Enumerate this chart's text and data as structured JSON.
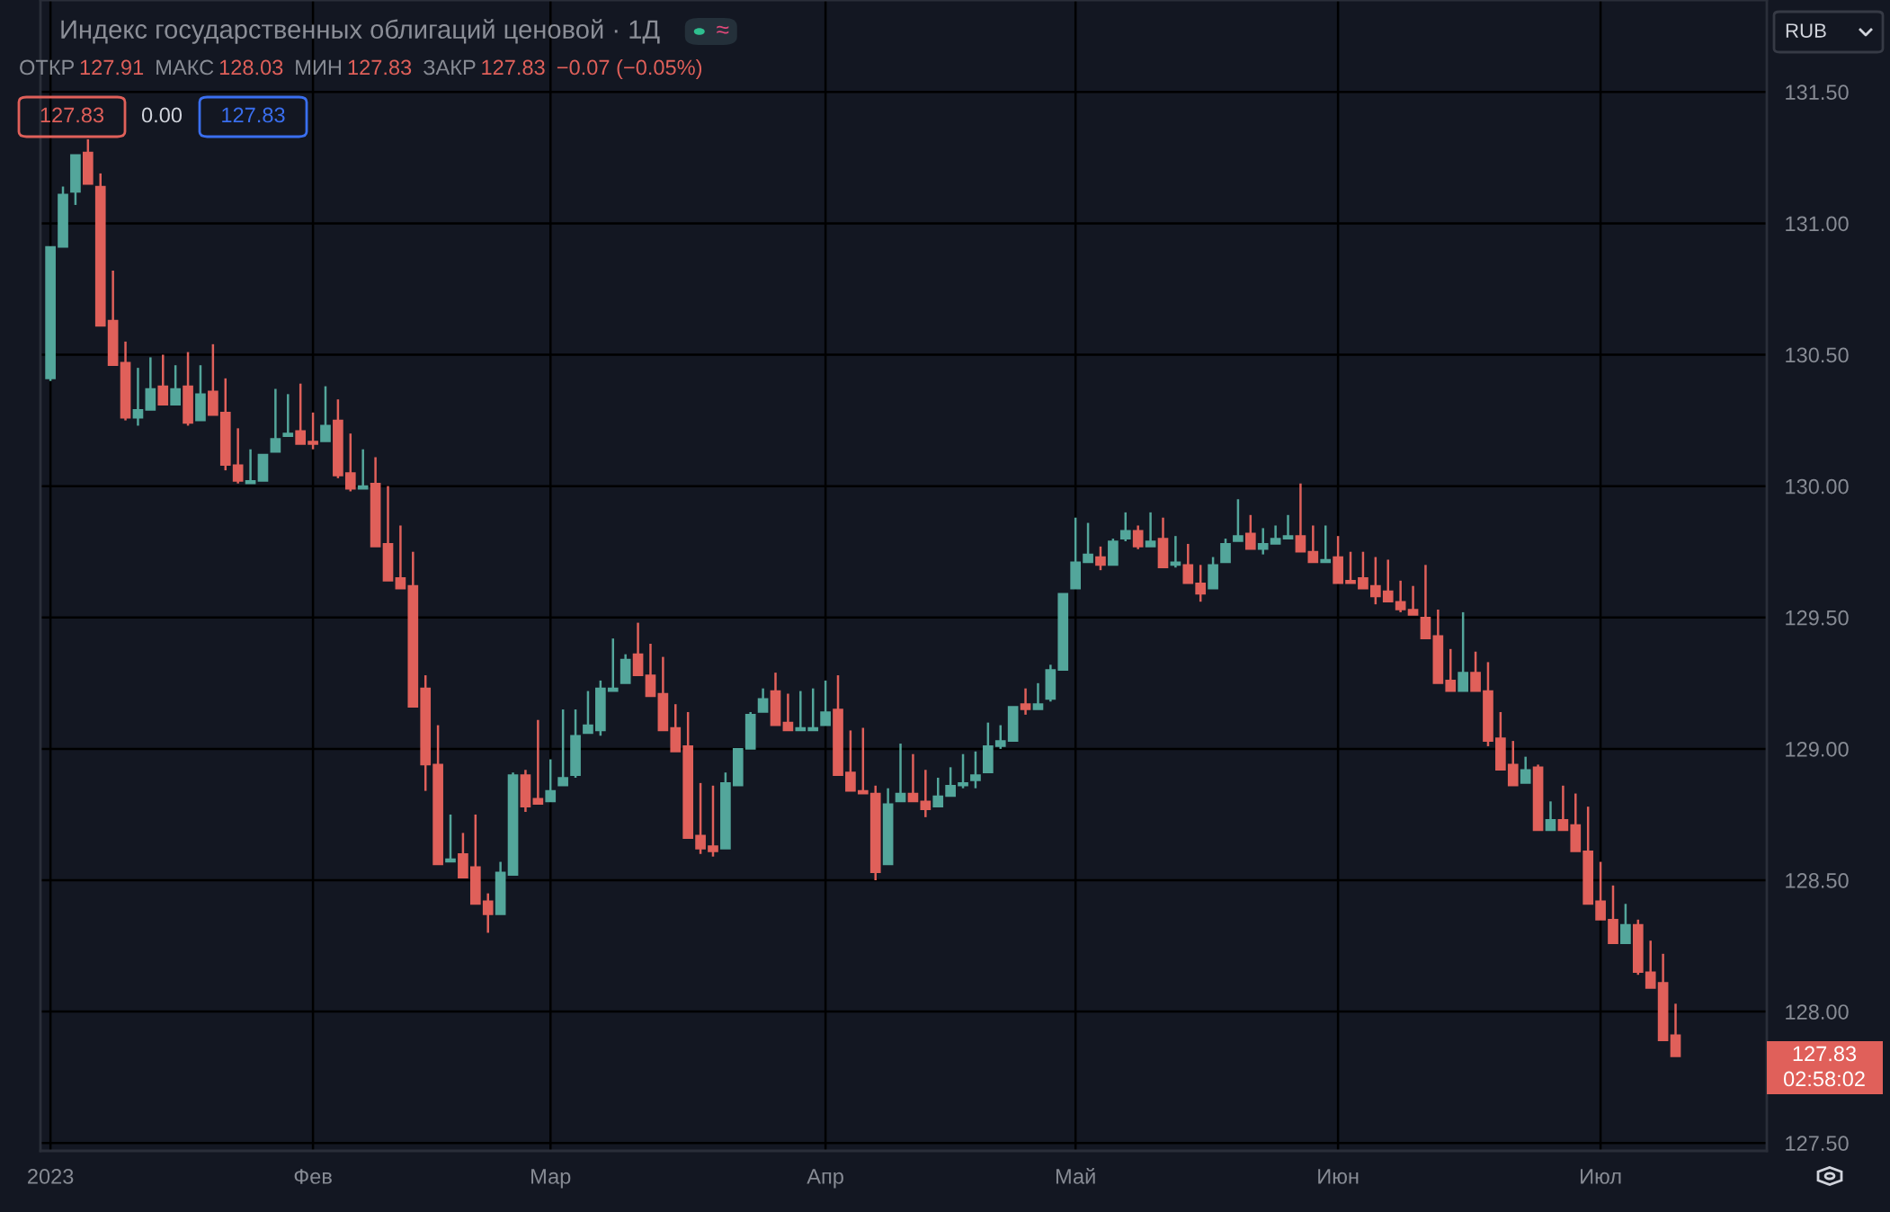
{
  "chart_data": {
    "type": "candlestick",
    "title": "Индекс государственных облигаций ценовой · 1Д",
    "categories": [
      "2023",
      null,
      null,
      null,
      null,
      null,
      null,
      null,
      null,
      null,
      null,
      null,
      null,
      null,
      null,
      null,
      null,
      null,
      null,
      null,
      null,
      "Фев",
      null,
      null,
      null,
      null,
      null,
      null,
      null,
      null,
      null,
      null,
      null,
      null,
      null,
      null,
      null,
      null,
      null,
      null,
      "Мар",
      null,
      null,
      null,
      null,
      null,
      null,
      null,
      null,
      null,
      null,
      null,
      null,
      null,
      null,
      null,
      null,
      null,
      null,
      null,
      null,
      null,
      "Апр",
      null,
      null,
      null,
      null,
      null,
      null,
      null,
      null,
      null,
      null,
      null,
      null,
      null,
      null,
      null,
      null,
      null,
      null,
      null,
      "Май",
      null,
      null,
      null,
      null,
      null,
      null,
      null,
      null,
      null,
      null,
      null,
      null,
      null,
      null,
      null,
      null,
      null,
      null,
      null,
      null,
      "Июн",
      null,
      null,
      null,
      null,
      null,
      null,
      null,
      null,
      null,
      null,
      null,
      null,
      null,
      null,
      null,
      null,
      null,
      null,
      null,
      null,
      "Июл",
      null,
      null,
      null,
      null,
      null,
      null
    ],
    "ohlc": [
      [
        130.41,
        130.91,
        130.4,
        130.91
      ],
      [
        130.91,
        131.14,
        130.91,
        131.11
      ],
      [
        131.12,
        131.26,
        131.07,
        131.26
      ],
      [
        131.27,
        131.32,
        131.15,
        131.15
      ],
      [
        131.14,
        131.19,
        130.61,
        130.61
      ],
      [
        130.63,
        130.82,
        130.46,
        130.46
      ],
      [
        130.47,
        130.55,
        130.25,
        130.26
      ],
      [
        130.26,
        130.45,
        130.23,
        130.29
      ],
      [
        130.29,
        130.49,
        130.29,
        130.37
      ],
      [
        130.38,
        130.5,
        130.31,
        130.31
      ],
      [
        130.31,
        130.46,
        130.31,
        130.37
      ],
      [
        130.38,
        130.51,
        130.23,
        130.24
      ],
      [
        130.25,
        130.46,
        130.25,
        130.35
      ],
      [
        130.36,
        130.54,
        130.27,
        130.27
      ],
      [
        130.28,
        130.41,
        130.06,
        130.08
      ],
      [
        130.08,
        130.22,
        130.01,
        130.02
      ],
      [
        130.01,
        130.14,
        130.01,
        130.02
      ],
      [
        130.02,
        130.12,
        130.02,
        130.12
      ],
      [
        130.13,
        130.37,
        130.13,
        130.18
      ],
      [
        130.19,
        130.35,
        130.19,
        130.2
      ],
      [
        130.21,
        130.39,
        130.16,
        130.16
      ],
      [
        130.17,
        130.28,
        130.14,
        130.16
      ],
      [
        130.17,
        130.38,
        130.17,
        130.23
      ],
      [
        130.25,
        130.33,
        130.03,
        130.04
      ],
      [
        130.05,
        130.2,
        129.98,
        129.99
      ],
      [
        129.99,
        130.14,
        129.99,
        130.0
      ],
      [
        130.01,
        130.11,
        129.77,
        129.77
      ],
      [
        129.78,
        130.0,
        129.64,
        129.64
      ],
      [
        129.65,
        129.85,
        129.61,
        129.61
      ],
      [
        129.62,
        129.75,
        129.16,
        129.16
      ],
      [
        129.23,
        129.28,
        128.84,
        128.94
      ],
      [
        128.94,
        129.09,
        128.56,
        128.56
      ],
      [
        128.57,
        128.75,
        128.57,
        128.58
      ],
      [
        128.6,
        128.68,
        128.51,
        128.51
      ],
      [
        128.55,
        128.75,
        128.41,
        128.41
      ],
      [
        128.42,
        128.45,
        128.3,
        128.37
      ],
      [
        128.37,
        128.57,
        128.37,
        128.53
      ],
      [
        128.52,
        128.91,
        128.52,
        128.9
      ],
      [
        128.9,
        128.92,
        128.76,
        128.78
      ],
      [
        128.81,
        129.11,
        128.79,
        128.79
      ],
      [
        128.8,
        128.96,
        128.8,
        128.84
      ],
      [
        128.86,
        129.15,
        128.86,
        128.89
      ],
      [
        128.9,
        129.15,
        128.89,
        129.05
      ],
      [
        129.06,
        129.22,
        129.06,
        129.09
      ],
      [
        129.07,
        129.26,
        129.05,
        129.23
      ],
      [
        129.22,
        129.42,
        129.22,
        129.23
      ],
      [
        129.25,
        129.36,
        129.25,
        129.34
      ],
      [
        129.36,
        129.48,
        129.28,
        129.28
      ],
      [
        129.28,
        129.4,
        129.2,
        129.2
      ],
      [
        129.21,
        129.35,
        129.07,
        129.07
      ],
      [
        129.08,
        129.17,
        128.99,
        128.99
      ],
      [
        129.01,
        129.14,
        128.66,
        128.66
      ],
      [
        128.67,
        128.87,
        128.6,
        128.62
      ],
      [
        128.63,
        128.86,
        128.59,
        128.61
      ],
      [
        128.62,
        128.91,
        128.62,
        128.87
      ],
      [
        128.86,
        129.0,
        128.86,
        129.0
      ],
      [
        129.0,
        129.14,
        129.0,
        129.13
      ],
      [
        129.14,
        129.23,
        129.14,
        129.19
      ],
      [
        129.22,
        129.29,
        129.09,
        129.09
      ],
      [
        129.1,
        129.21,
        129.07,
        129.07
      ],
      [
        129.07,
        129.22,
        129.07,
        129.08
      ],
      [
        129.07,
        129.23,
        129.07,
        129.08
      ],
      [
        129.09,
        129.26,
        129.09,
        129.14
      ],
      [
        129.15,
        129.28,
        128.9,
        128.9
      ],
      [
        128.91,
        129.07,
        128.84,
        128.84
      ],
      [
        128.84,
        129.08,
        128.83,
        128.83
      ],
      [
        128.83,
        128.86,
        128.5,
        128.53
      ],
      [
        128.56,
        128.85,
        128.56,
        128.79
      ],
      [
        128.8,
        129.02,
        128.8,
        128.83
      ],
      [
        128.83,
        128.98,
        128.8,
        128.8
      ],
      [
        128.8,
        128.92,
        128.74,
        128.77
      ],
      [
        128.78,
        128.89,
        128.78,
        128.82
      ],
      [
        128.82,
        128.93,
        128.82,
        128.86
      ],
      [
        128.86,
        128.98,
        128.85,
        128.87
      ],
      [
        128.88,
        128.99,
        128.85,
        128.9
      ],
      [
        128.91,
        129.1,
        128.91,
        129.01
      ],
      [
        129.01,
        129.09,
        129.0,
        129.03
      ],
      [
        129.03,
        129.16,
        129.03,
        129.16
      ],
      [
        129.17,
        129.23,
        129.13,
        129.15
      ],
      [
        129.15,
        129.25,
        129.15,
        129.17
      ],
      [
        129.19,
        129.32,
        129.18,
        129.3
      ],
      [
        129.3,
        129.59,
        129.3,
        129.59
      ],
      [
        129.61,
        129.88,
        129.61,
        129.71
      ],
      [
        129.71,
        129.86,
        129.71,
        129.74
      ],
      [
        129.73,
        129.77,
        129.68,
        129.7
      ],
      [
        129.7,
        129.8,
        129.7,
        129.79
      ],
      [
        129.8,
        129.9,
        129.79,
        129.83
      ],
      [
        129.83,
        129.85,
        129.76,
        129.77
      ],
      [
        129.77,
        129.9,
        129.77,
        129.79
      ],
      [
        129.8,
        129.88,
        129.69,
        129.69
      ],
      [
        129.7,
        129.81,
        129.69,
        129.71
      ],
      [
        129.7,
        129.78,
        129.63,
        129.63
      ],
      [
        129.63,
        129.7,
        129.56,
        129.59
      ],
      [
        129.61,
        129.73,
        129.61,
        129.7
      ],
      [
        129.71,
        129.8,
        129.71,
        129.78
      ],
      [
        129.79,
        129.95,
        129.79,
        129.81
      ],
      [
        129.82,
        129.89,
        129.76,
        129.76
      ],
      [
        129.76,
        129.84,
        129.74,
        129.78
      ],
      [
        129.78,
        129.85,
        129.78,
        129.8
      ],
      [
        129.8,
        129.89,
        129.8,
        129.81
      ],
      [
        129.81,
        130.01,
        129.75,
        129.75
      ],
      [
        129.75,
        129.85,
        129.71,
        129.71
      ],
      [
        129.71,
        129.85,
        129.71,
        129.72
      ],
      [
        129.73,
        129.81,
        129.63,
        129.63
      ],
      [
        129.64,
        129.75,
        129.63,
        129.63
      ],
      [
        129.65,
        129.75,
        129.61,
        129.61
      ],
      [
        129.62,
        129.73,
        129.55,
        129.58
      ],
      [
        129.6,
        129.72,
        129.56,
        129.56
      ],
      [
        129.56,
        129.64,
        129.52,
        129.53
      ],
      [
        129.53,
        129.62,
        129.51,
        129.51
      ],
      [
        129.5,
        129.7,
        129.42,
        129.42
      ],
      [
        129.43,
        129.53,
        129.25,
        129.25
      ],
      [
        129.26,
        129.38,
        129.22,
        129.22
      ],
      [
        129.22,
        129.52,
        129.22,
        129.29
      ],
      [
        129.29,
        129.37,
        129.22,
        129.22
      ],
      [
        129.22,
        129.33,
        129.01,
        129.03
      ],
      [
        129.04,
        129.14,
        128.92,
        128.92
      ],
      [
        128.94,
        129.03,
        128.86,
        128.86
      ],
      [
        128.87,
        128.97,
        128.87,
        128.92
      ],
      [
        128.93,
        128.94,
        128.69,
        128.69
      ],
      [
        128.69,
        128.8,
        128.69,
        128.73
      ],
      [
        128.73,
        128.86,
        128.69,
        128.69
      ],
      [
        128.71,
        128.83,
        128.61,
        128.61
      ],
      [
        128.61,
        128.78,
        128.41,
        128.41
      ],
      [
        128.42,
        128.57,
        128.35,
        128.35
      ],
      [
        128.35,
        128.48,
        128.26,
        128.26
      ],
      [
        128.26,
        128.41,
        128.26,
        128.33
      ],
      [
        128.33,
        128.35,
        128.14,
        128.15
      ],
      [
        128.15,
        128.27,
        128.09,
        128.09
      ],
      [
        128.11,
        128.22,
        127.89,
        127.89
      ],
      [
        127.91,
        128.03,
        127.83,
        127.83
      ]
    ],
    "colors": [
      "#53a69b",
      "#53a69b",
      "#53a69b",
      "#e0605a",
      "#e0605a",
      "#e0605a",
      "#e0605a",
      "#53a69b",
      "#53a69b",
      "#e0605a",
      "#53a69b",
      "#e0605a",
      "#53a69b",
      "#e0605a",
      "#e0605a",
      "#e0605a",
      "#53a69b",
      "#53a69b",
      "#53a69b",
      "#53a69b",
      "#e0605a",
      "#e0605a",
      "#53a69b",
      "#e0605a",
      "#e0605a",
      "#53a69b",
      "#e0605a",
      "#e0605a",
      "#e0605a",
      "#e0605a",
      "#e0605a",
      "#e0605a",
      "#53a69b",
      "#e0605a",
      "#e0605a",
      "#e0605a",
      "#53a69b",
      "#53a69b",
      "#e0605a",
      "#e0605a",
      "#53a69b",
      "#53a69b",
      "#53a69b",
      "#53a69b",
      "#53a69b",
      "#53a69b",
      "#53a69b",
      "#e0605a",
      "#e0605a",
      "#e0605a",
      "#e0605a",
      "#e0605a",
      "#e0605a",
      "#e0605a",
      "#53a69b",
      "#53a69b",
      "#53a69b",
      "#53a69b",
      "#e0605a",
      "#e0605a",
      "#53a69b",
      "#53a69b",
      "#53a69b",
      "#e0605a",
      "#e0605a",
      "#e0605a",
      "#e0605a",
      "#53a69b",
      "#53a69b",
      "#e0605a",
      "#e0605a",
      "#53a69b",
      "#53a69b",
      "#53a69b",
      "#53a69b",
      "#53a69b",
      "#53a69b",
      "#53a69b",
      "#e0605a",
      "#53a69b",
      "#53a69b",
      "#53a69b",
      "#53a69b",
      "#53a69b",
      "#e0605a",
      "#53a69b",
      "#53a69b",
      "#e0605a",
      "#53a69b",
      "#e0605a",
      "#53a69b",
      "#e0605a",
      "#e0605a",
      "#53a69b",
      "#53a69b",
      "#53a69b",
      "#e0605a",
      "#53a69b",
      "#53a69b",
      "#53a69b",
      "#e0605a",
      "#e0605a",
      "#53a69b",
      "#e0605a",
      "#e0605a",
      "#e0605a",
      "#e0605a",
      "#e0605a",
      "#e0605a",
      "#e0605a",
      "#e0605a",
      "#e0605a",
      "#e0605a",
      "#53a69b",
      "#e0605a",
      "#e0605a",
      "#e0605a",
      "#e0605a",
      "#53a69b",
      "#e0605a",
      "#53a69b",
      "#e0605a",
      "#e0605a",
      "#e0605a",
      "#e0605a",
      "#e0605a",
      "#53a69b",
      "#e0605a",
      "#e0605a",
      "#e0605a",
      "#e0605a"
    ],
    "ylim": [
      127.47,
      131.85
    ],
    "yticks": [
      {
        "value": 127.5,
        "label": "127.50"
      },
      {
        "value": 128.0,
        "label": "128.00"
      },
      {
        "value": 128.5,
        "label": "128.50"
      },
      {
        "value": 129.0,
        "label": "129.00"
      },
      {
        "value": 129.5,
        "label": "129.50"
      },
      {
        "value": 130.0,
        "label": "130.00"
      },
      {
        "value": 130.5,
        "label": "130.50"
      },
      {
        "value": 131.0,
        "label": "131.00"
      },
      {
        "value": 131.5,
        "label": "131.50"
      }
    ],
    "grid": true,
    "annotations": [
      "ОТКР",
      "127.91",
      "МАКС",
      "128.03",
      "МИН",
      "127.83",
      "ЗАКР",
      "127.83",
      "−0.07 (−0.05%)",
      "127.83",
      "0.00",
      "127.83",
      "RUB",
      "127.83",
      "02:58:02",
      "≈"
    ]
  }
}
